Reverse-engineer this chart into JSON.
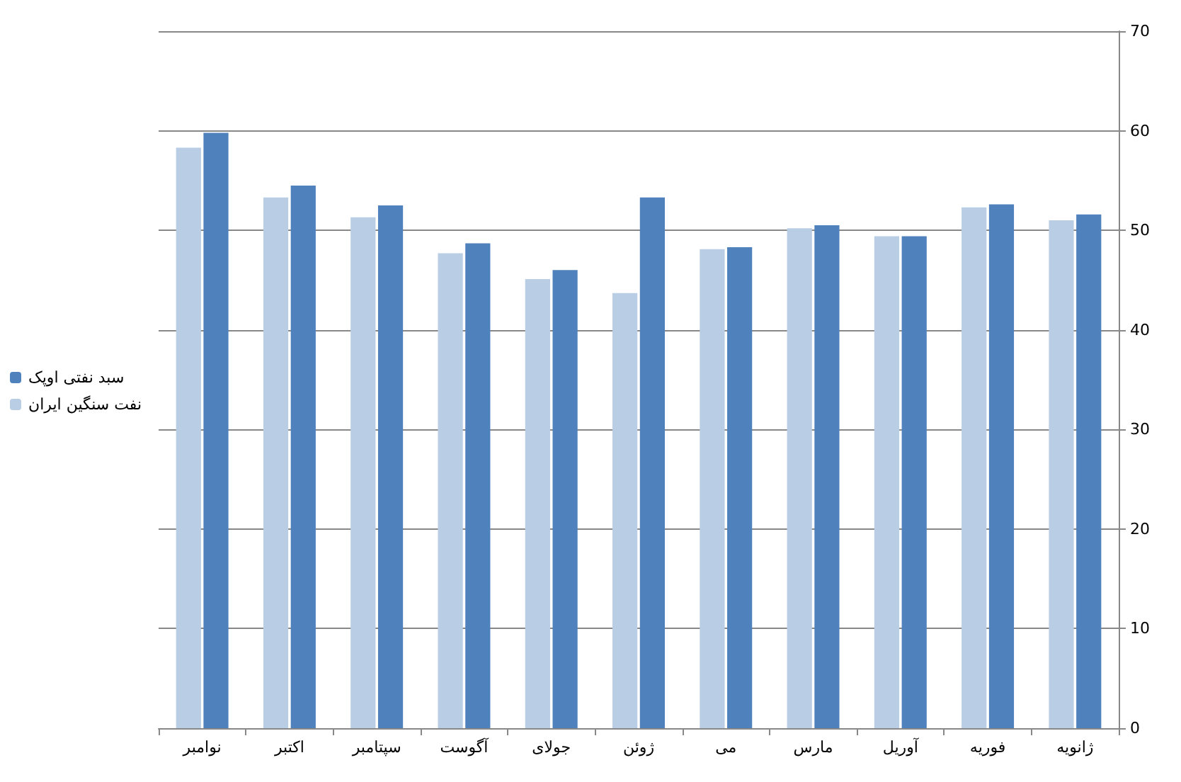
{
  "chart_data": {
    "type": "bar",
    "categories": [
      "نوامبر",
      "اکتبر",
      "سپتامبر",
      "آگوست",
      "جولای",
      "ژوئن",
      "می",
      "مارس",
      "آوریل",
      "فوریه",
      "ژانویه"
    ],
    "series": [
      {
        "name": "نفت سنگین ایران",
        "color": "#b9cde5",
        "values": [
          58.3,
          53.3,
          51.3,
          47.7,
          45.1,
          43.7,
          48.1,
          50.2,
          49.4,
          52.3,
          51.0
        ]
      },
      {
        "name": "سبد نفتی اوپک",
        "color": "#4f81bd",
        "values": [
          59.8,
          54.5,
          52.5,
          48.7,
          46.0,
          53.3,
          48.3,
          50.5,
          49.4,
          52.6,
          51.6
        ]
      }
    ],
    "ylim": [
      0,
      70
    ],
    "yticks": [
      0,
      10,
      20,
      30,
      40,
      50,
      60,
      70
    ],
    "grid": "y",
    "legend": "left"
  }
}
